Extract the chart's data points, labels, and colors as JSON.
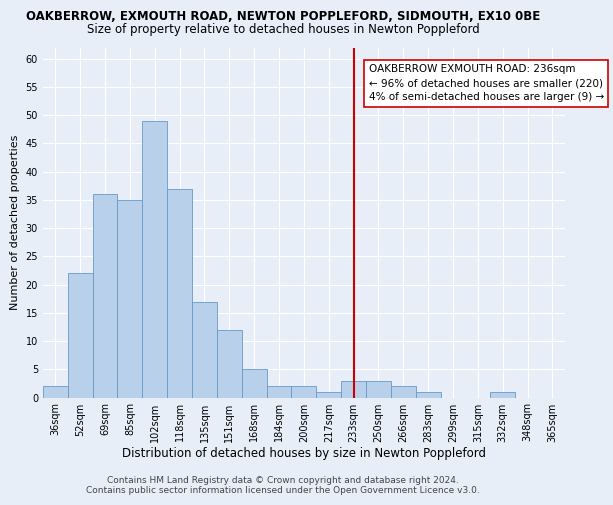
{
  "title": "OAKBERROW, EXMOUTH ROAD, NEWTON POPPLEFORD, SIDMOUTH, EX10 0BE",
  "subtitle": "Size of property relative to detached houses in Newton Poppleford",
  "xlabel": "Distribution of detached houses by size in Newton Poppleford",
  "ylabel": "Number of detached properties",
  "categories": [
    "36sqm",
    "52sqm",
    "69sqm",
    "85sqm",
    "102sqm",
    "118sqm",
    "135sqm",
    "151sqm",
    "168sqm",
    "184sqm",
    "200sqm",
    "217sqm",
    "233sqm",
    "250sqm",
    "266sqm",
    "283sqm",
    "299sqm",
    "315sqm",
    "332sqm",
    "348sqm",
    "365sqm"
  ],
  "bar_values": [
    2,
    22,
    36,
    35,
    49,
    37,
    17,
    12,
    5,
    2,
    2,
    1,
    3,
    3,
    2,
    1,
    0,
    0,
    1,
    0,
    0
  ],
  "bar_color": "#b8d0ea",
  "bar_edge_color": "#6699cc",
  "ylim": [
    0,
    62
  ],
  "yticks": [
    0,
    5,
    10,
    15,
    20,
    25,
    30,
    35,
    40,
    45,
    50,
    55,
    60
  ],
  "vline_color": "#cc0000",
  "annotation_text": "OAKBERROW EXMOUTH ROAD: 236sqm\n← 96% of detached houses are smaller (220)\n4% of semi-detached houses are larger (9) →",
  "annotation_box_color": "#ffffff",
  "annotation_box_edge": "#cc0000",
  "footer_text": "Contains HM Land Registry data © Crown copyright and database right 2024.\nContains public sector information licensed under the Open Government Licence v3.0.",
  "bg_color": "#e8eef8",
  "plot_bg_color": "#e8eef8",
  "grid_color": "#ffffff",
  "title_fontsize": 8.5,
  "subtitle_fontsize": 8.5,
  "xlabel_fontsize": 8.5,
  "ylabel_fontsize": 8,
  "tick_fontsize": 7,
  "footer_fontsize": 6.5,
  "annotation_fontsize": 7.5
}
